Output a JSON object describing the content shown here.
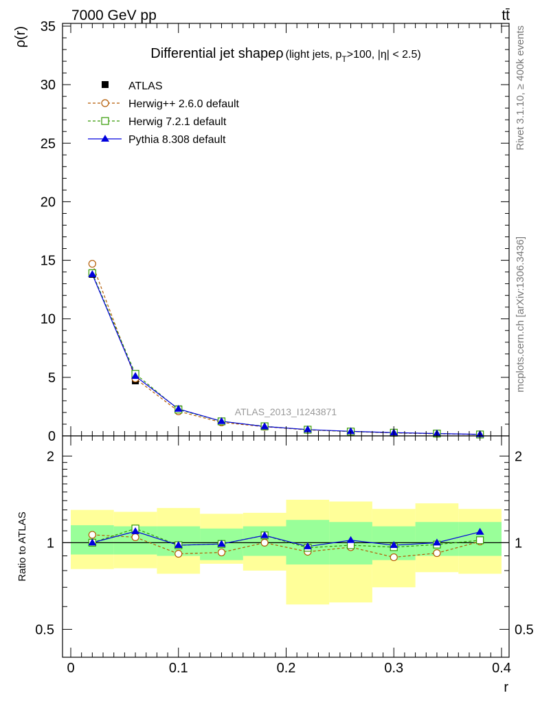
{
  "header": {
    "left": "7000 GeV pp",
    "right": "tt̄"
  },
  "side_labels": {
    "right_top": "Rivet 3.1.10, ≥ 400k events",
    "right_bottom": "mcplots.cern.ch [arXiv:1306.3436]"
  },
  "watermark": "ATLAS_2013_I1243871",
  "colors": {
    "atlas": "#000000",
    "herwigpp": "#b35900",
    "herwig7": "#339900",
    "pythia": "#0000dd",
    "band_inner": "#99ff99",
    "band_outer": "#ffff99"
  },
  "chart_data": [
    {
      "type": "scatter",
      "title": "Differential jet shapeρ",
      "title_note_a": "(light jets, p",
      "title_note_sub": "T",
      "title_note_b": ">100, |η| < 2.5)",
      "ylabel": "ρ(r)",
      "xlim": [
        0,
        0.4
      ],
      "ylim": [
        0,
        35
      ],
      "y_ticks": [
        "0",
        "5",
        "10",
        "15",
        "20",
        "25",
        "30",
        "35"
      ],
      "legend_position": "top-left",
      "x": [
        0.02,
        0.06,
        0.1,
        0.14,
        0.18,
        0.22,
        0.26,
        0.3,
        0.34,
        0.38
      ],
      "series": [
        {
          "name": "ATLAS",
          "marker": "filled-square",
          "values": [
            13.8,
            4.7,
            2.3,
            1.25,
            0.78,
            0.55,
            0.38,
            0.28,
            0.2,
            0.12
          ]
        },
        {
          "name": "Herwig++ 2.6.0 default",
          "marker": "open-circle",
          "line": "dashed",
          "values": [
            14.7,
            4.9,
            2.1,
            1.15,
            0.78,
            0.51,
            0.37,
            0.25,
            0.18,
            0.12
          ]
        },
        {
          "name": "Herwig 7.2.1 default",
          "marker": "open-square",
          "line": "dashed",
          "values": [
            13.9,
            5.3,
            2.25,
            1.24,
            0.82,
            0.53,
            0.37,
            0.27,
            0.2,
            0.12
          ]
        },
        {
          "name": "Pythia 8.308 default",
          "marker": "filled-triangle",
          "line": "solid",
          "values": [
            13.8,
            5.1,
            2.3,
            1.25,
            0.8,
            0.54,
            0.39,
            0.28,
            0.2,
            0.13
          ]
        }
      ]
    },
    {
      "type": "scatter",
      "ylabel": "Ratio to ATLAS",
      "xlabel": "r",
      "xlim": [
        0,
        0.4
      ],
      "ylim": [
        0.4,
        2.35
      ],
      "y_scale": "log",
      "y_tick_values": [
        0.5,
        1,
        2
      ],
      "y_ticks": [
        "0.5",
        "1",
        "2"
      ],
      "x_tick_values": [
        0,
        0.1,
        0.2,
        0.3,
        0.4
      ],
      "x_ticks": [
        "0",
        "0.1",
        "0.2",
        "0.3",
        "0.4"
      ],
      "x": [
        0.02,
        0.06,
        0.1,
        0.14,
        0.18,
        0.22,
        0.26,
        0.3,
        0.34,
        0.38
      ],
      "bin_edges": [
        0,
        0.04,
        0.08,
        0.12,
        0.16,
        0.2,
        0.24,
        0.28,
        0.32,
        0.36,
        0.4
      ],
      "band_inner": {
        "low": [
          0.91,
          0.91,
          0.9,
          0.87,
          0.9,
          0.84,
          0.84,
          0.87,
          0.9,
          0.9
        ],
        "high": [
          1.15,
          1.14,
          1.14,
          1.12,
          1.14,
          1.2,
          1.18,
          1.14,
          1.18,
          1.18
        ]
      },
      "band_outer": {
        "low": [
          0.81,
          0.815,
          0.78,
          0.845,
          0.8,
          0.61,
          0.62,
          0.7,
          0.79,
          0.78
        ],
        "high": [
          1.3,
          1.28,
          1.32,
          1.26,
          1.27,
          1.41,
          1.39,
          1.31,
          1.37,
          1.31
        ]
      },
      "series": [
        {
          "name": "Herwig++ 2.6.0 default",
          "values": [
            1.065,
            1.045,
            0.915,
            0.925,
            1.0,
            0.93,
            0.965,
            0.89,
            0.92,
            1.01
          ]
        },
        {
          "name": "Herwig 7.2.1 default",
          "values": [
            1.0,
            1.12,
            0.98,
            0.99,
            1.06,
            0.96,
            0.98,
            0.965,
            0.985,
            1.02
          ]
        },
        {
          "name": "Pythia 8.308 default",
          "values": [
            1.0,
            1.095,
            0.98,
            0.99,
            1.06,
            0.97,
            1.02,
            0.98,
            1.0,
            1.09
          ]
        }
      ]
    }
  ]
}
